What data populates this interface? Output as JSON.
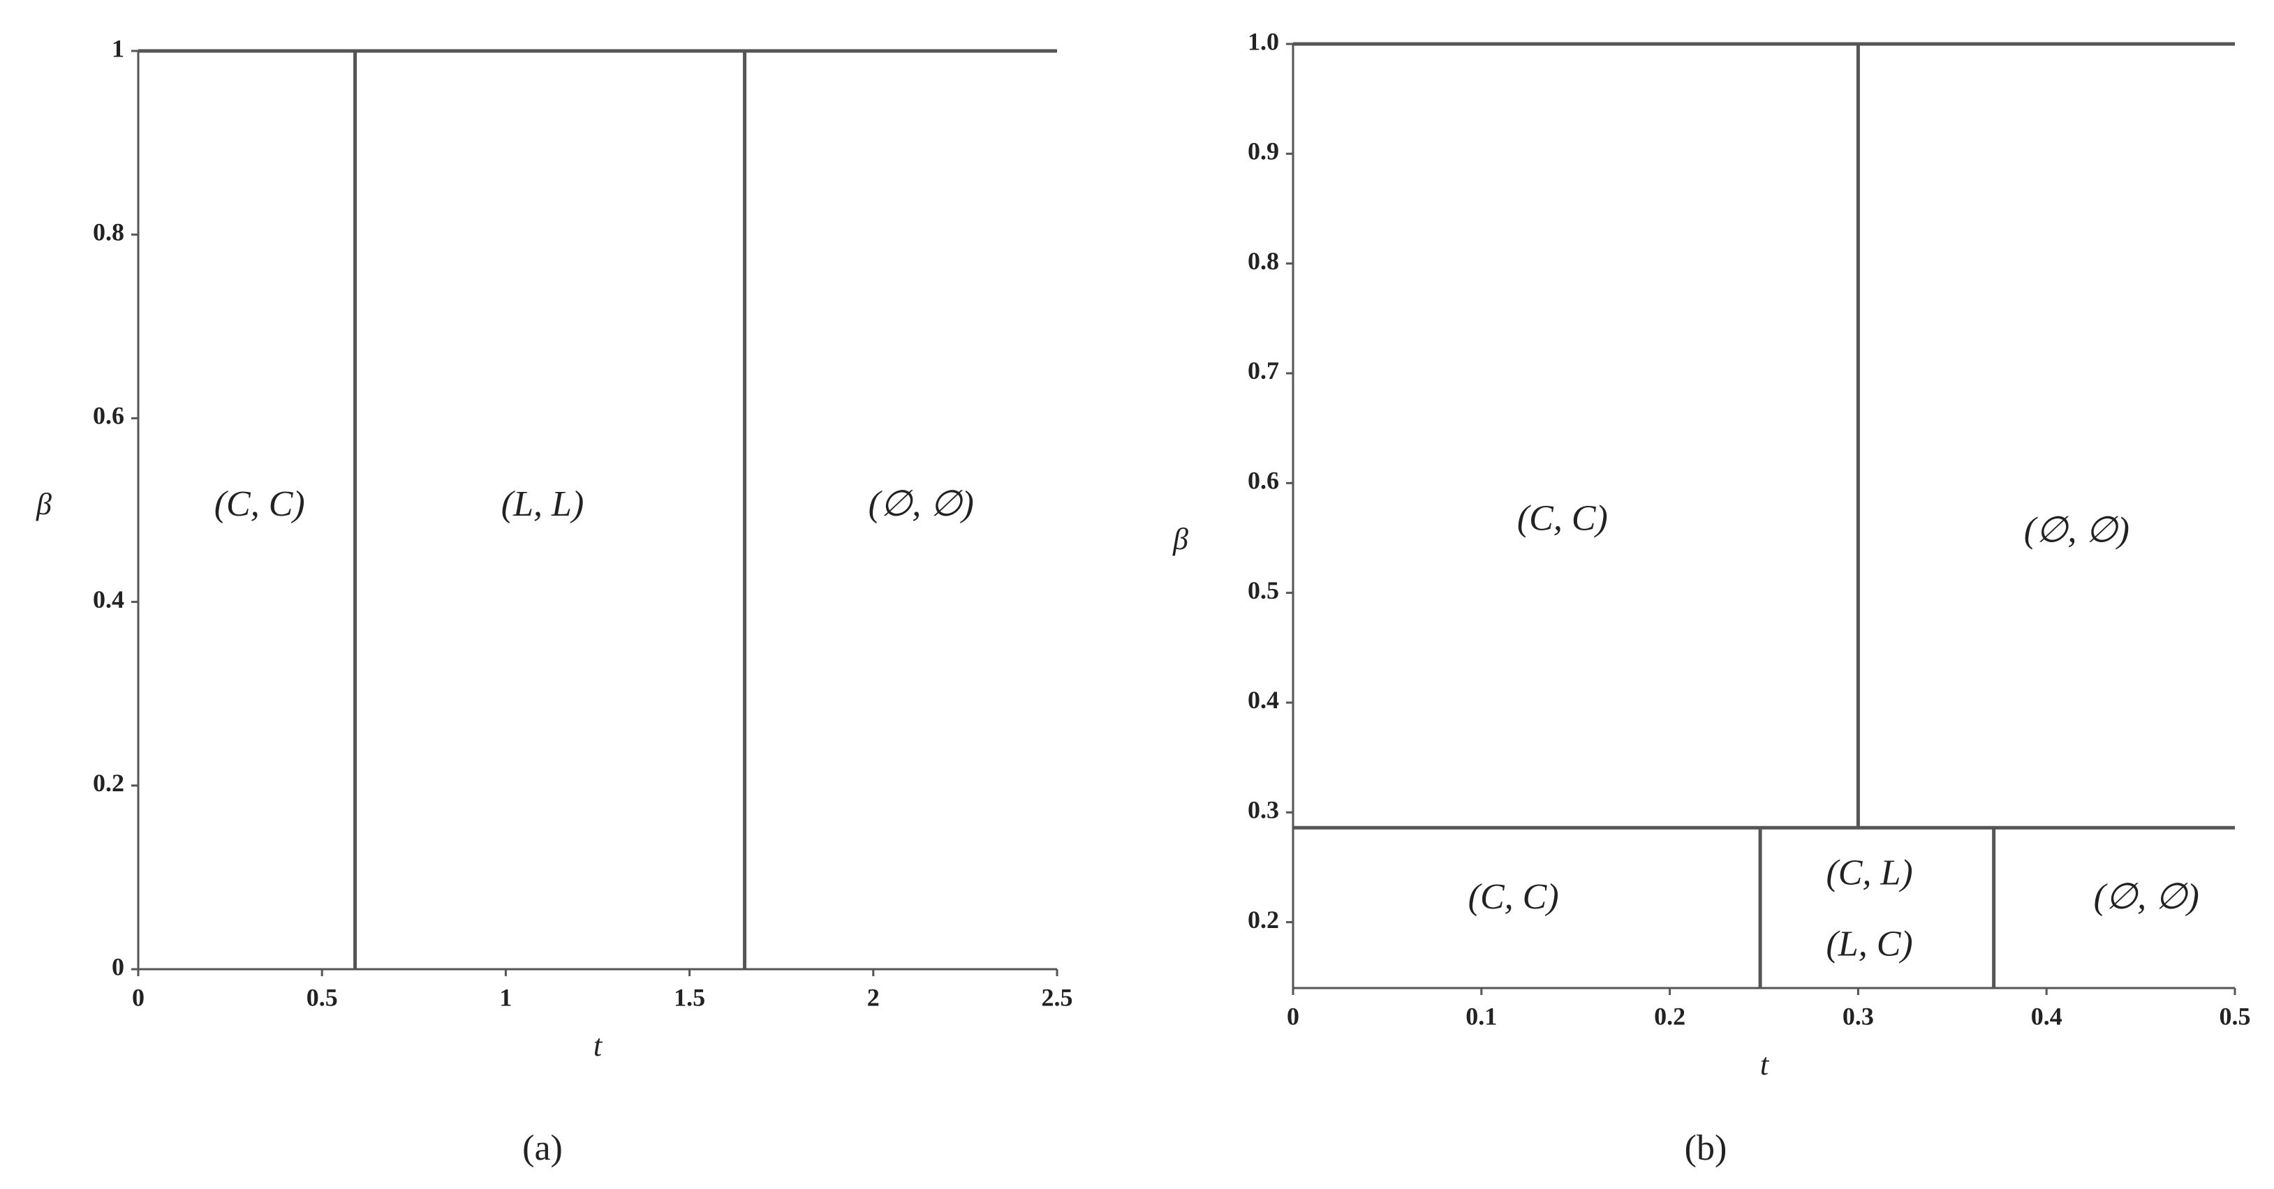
{
  "chart_data": [
    {
      "type": "line",
      "panel_label": "(a)",
      "x_label": "t",
      "y_label": "β",
      "xlim": [
        0,
        2.5
      ],
      "ylim": [
        0,
        1
      ],
      "xticks": [
        0,
        0.5,
        1,
        1.5,
        2,
        2.5
      ],
      "yticks": [
        0,
        0.2,
        0.4,
        0.6,
        0.8,
        1
      ],
      "color": "#555555",
      "series": [
        {
          "x": [
            0,
            2.5
          ],
          "values": [
            1,
            1
          ]
        },
        {
          "x": [
            0.59,
            0.59
          ],
          "values": [
            0,
            1
          ]
        },
        {
          "x": [
            1.65,
            1.65
          ],
          "values": [
            0,
            1
          ]
        }
      ],
      "annotations": [
        "(C, C)",
        "(L, L)",
        "(∅, ∅)"
      ]
    },
    {
      "type": "line",
      "panel_label": "(b)",
      "x_label": "t",
      "y_label": "β",
      "xlim": [
        0,
        0.5
      ],
      "ylim": [
        0.14,
        1
      ],
      "xticks": [
        0,
        0.1,
        0.2,
        0.3,
        0.4,
        0.5
      ],
      "yticks": [
        0.2,
        0.3,
        0.4,
        0.5,
        0.6,
        0.7,
        0.8,
        0.9,
        {
          "value": 1,
          "label": "1.0"
        }
      ],
      "color": "#555555",
      "series": [
        {
          "x": [
            0,
            0.5
          ],
          "values": [
            1,
            1
          ]
        },
        {
          "x": [
            0,
            0.5
          ],
          "values": [
            0.286,
            0.286
          ]
        },
        {
          "x": [
            0.3,
            0.3
          ],
          "values": [
            0.286,
            1
          ]
        },
        {
          "x": [
            0.248,
            0.248
          ],
          "values": [
            0.14,
            0.286
          ]
        },
        {
          "x": [
            0.372,
            0.372
          ],
          "values": [
            0.14,
            0.286
          ]
        }
      ],
      "annotations": [
        "(C, C)",
        "(∅, ∅)",
        "(C, C)",
        "(C, L)",
        "(L, C)",
        "(∅, ∅)"
      ]
    }
  ]
}
